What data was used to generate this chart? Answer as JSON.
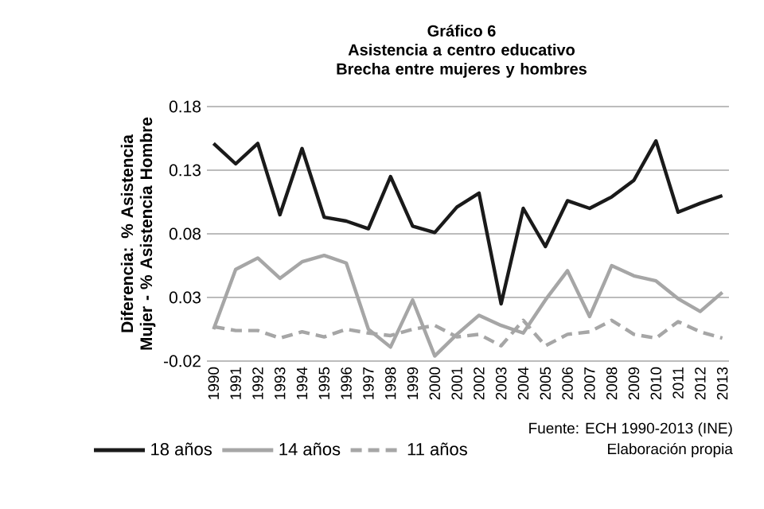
{
  "chart_data": {
    "type": "line",
    "title": "Gráfico 6",
    "subtitle": "Asistencia a centro educativo Brecha entre mujeres y hombres",
    "ylabel": "Diferencia: % Asistencia Mujer - % Asistencia Hombre",
    "categories": [
      "1990",
      "1991",
      "1992",
      "1993",
      "1994",
      "1995",
      "1996",
      "1997",
      "1998",
      "1999",
      "2000",
      "2001",
      "2002",
      "2003",
      "2004",
      "2005",
      "2006",
      "2007",
      "2008",
      "2009",
      "2010",
      "2011",
      "2012",
      "2013"
    ],
    "series": [
      {
        "name": "18 años",
        "color": "#1a1a1a",
        "line_style": "solid",
        "values": [
          0.151,
          0.135,
          0.151,
          0.095,
          0.147,
          0.093,
          0.09,
          0.084,
          0.125,
          0.086,
          0.081,
          0.101,
          0.112,
          0.025,
          0.1,
          0.07,
          0.106,
          0.1,
          0.109,
          0.122,
          0.153,
          0.097,
          0.104,
          0.11
        ]
      },
      {
        "name": "14 años",
        "color": "#a6a6a6",
        "line_style": "solid",
        "values": [
          0.005,
          0.052,
          0.061,
          0.045,
          0.058,
          0.063,
          0.057,
          0.005,
          -0.009,
          0.028,
          -0.016,
          0.001,
          0.016,
          0.008,
          0.002,
          0.028,
          0.051,
          0.015,
          0.055,
          0.047,
          0.043,
          0.029,
          0.019,
          0.034
        ]
      },
      {
        "name": "11 años",
        "color": "#a6a6a6",
        "line_style": "dashed",
        "values": [
          0.007,
          0.004,
          0.004,
          -0.002,
          0.003,
          -0.001,
          0.005,
          0.002,
          0.0,
          0.005,
          0.008,
          -0.001,
          0.001,
          -0.008,
          0.012,
          -0.008,
          0.001,
          0.003,
          0.012,
          0.001,
          -0.002,
          0.011,
          0.003,
          -0.002
        ]
      }
    ],
    "ylim": [
      -0.02,
      0.18
    ],
    "yticks": [
      -0.02,
      0.03,
      0.08,
      0.13,
      0.18
    ],
    "grid": "y",
    "legend": "bottom",
    "annotations": [
      "Fuente: ECH 1990-2013 (INE)",
      "Elaboración propia"
    ]
  }
}
